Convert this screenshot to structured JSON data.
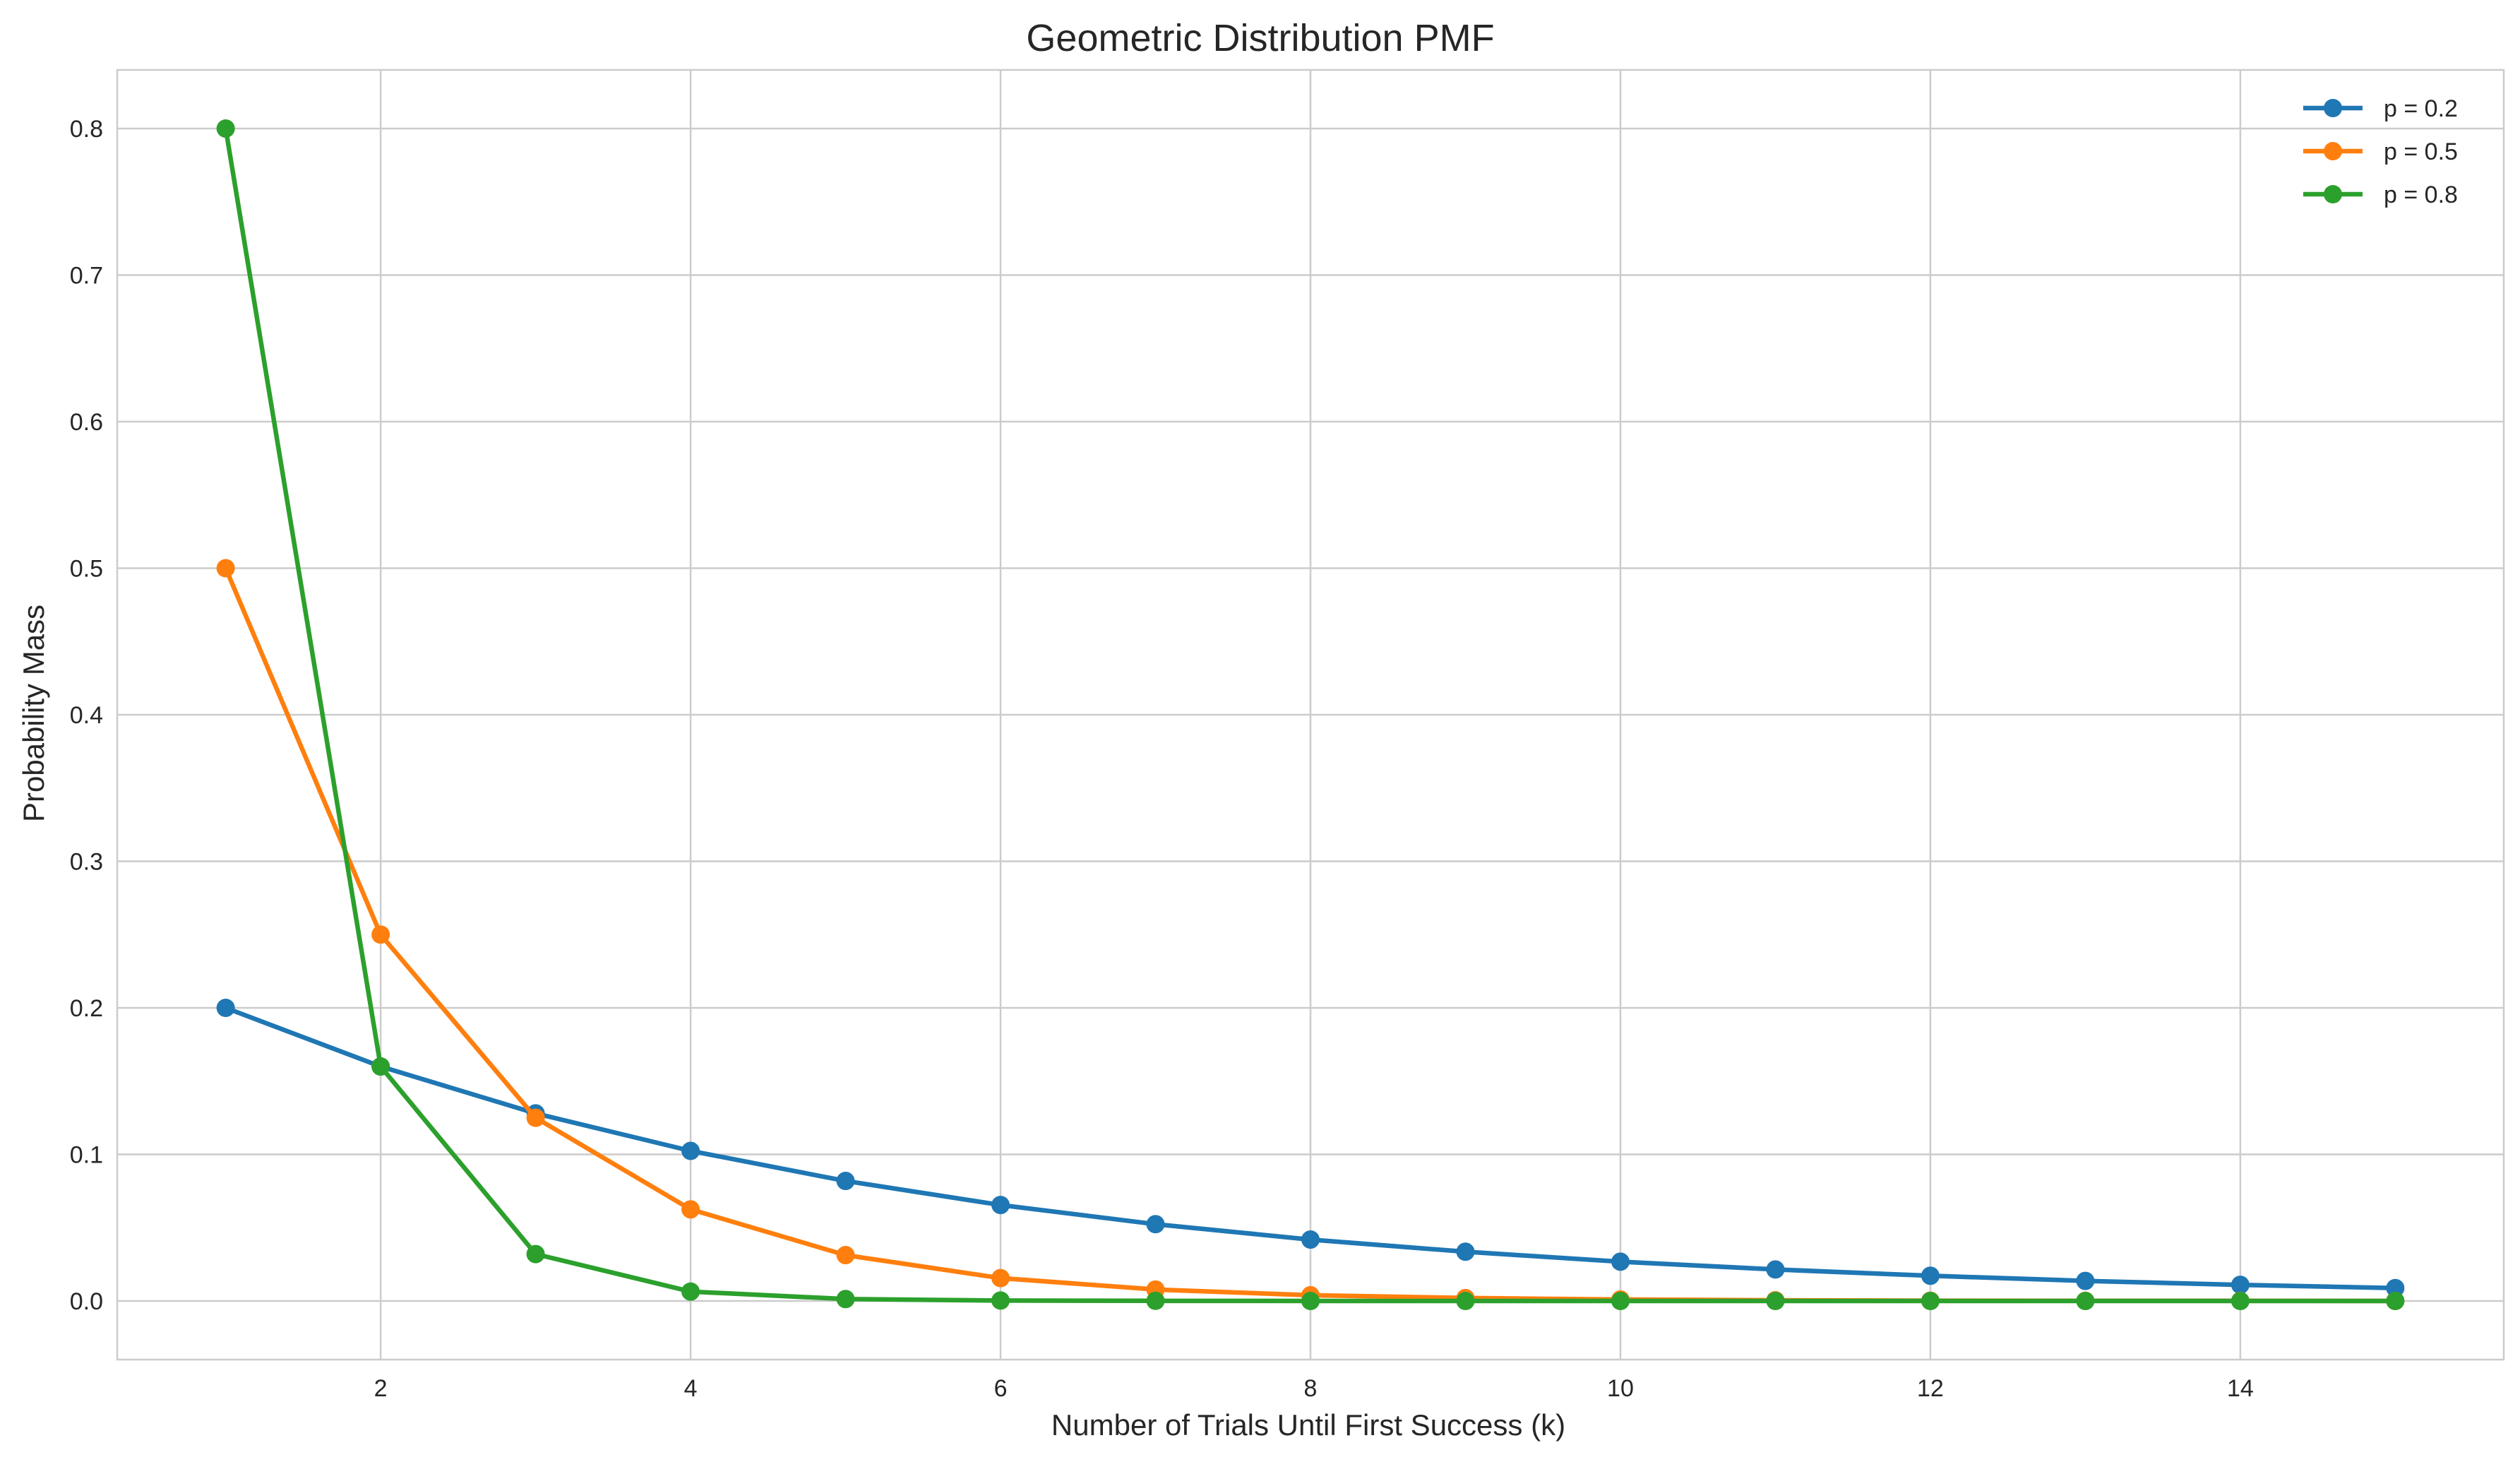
{
  "chart_data": {
    "type": "line",
    "title": "Geometric Distribution PMF",
    "xlabel": "Number of Trials Until First Success (k)",
    "ylabel": "Probability Mass",
    "xlim": [
      0.3,
      15.7
    ],
    "ylim": [
      -0.04,
      0.84
    ],
    "xticks": [
      2,
      4,
      6,
      8,
      10,
      12,
      14
    ],
    "yticks": [
      0.0,
      0.1,
      0.2,
      0.3,
      0.4,
      0.5,
      0.6,
      0.7,
      0.8
    ],
    "ytick_labels": [
      "0.0",
      "0.1",
      "0.2",
      "0.3",
      "0.4",
      "0.5",
      "0.6",
      "0.7",
      "0.8"
    ],
    "grid": true,
    "legend_position": "top-right",
    "marker": "circle",
    "x": [
      1,
      2,
      3,
      4,
      5,
      6,
      7,
      8,
      9,
      10,
      11,
      12,
      13,
      14,
      15
    ],
    "series": [
      {
        "name": "p = 0.2",
        "color": "#1f77b4",
        "values": [
          0.2,
          0.16,
          0.128,
          0.1024,
          0.0819,
          0.0655,
          0.0524,
          0.0419,
          0.0336,
          0.0268,
          0.0215,
          0.0172,
          0.0137,
          0.011,
          0.0088
        ]
      },
      {
        "name": "p = 0.5",
        "color": "#ff7f0e",
        "values": [
          0.5,
          0.25,
          0.125,
          0.0625,
          0.0313,
          0.0156,
          0.0078,
          0.0039,
          0.002,
          0.001,
          0.0005,
          0.0002,
          0.0001,
          0.0001,
          0.0
        ]
      },
      {
        "name": "p = 0.8",
        "color": "#2ca02c",
        "values": [
          0.8,
          0.16,
          0.032,
          0.0064,
          0.0013,
          0.0003,
          0.0001,
          0.0,
          0.0,
          0.0,
          0.0,
          0.0,
          0.0,
          0.0,
          0.0
        ]
      }
    ]
  }
}
